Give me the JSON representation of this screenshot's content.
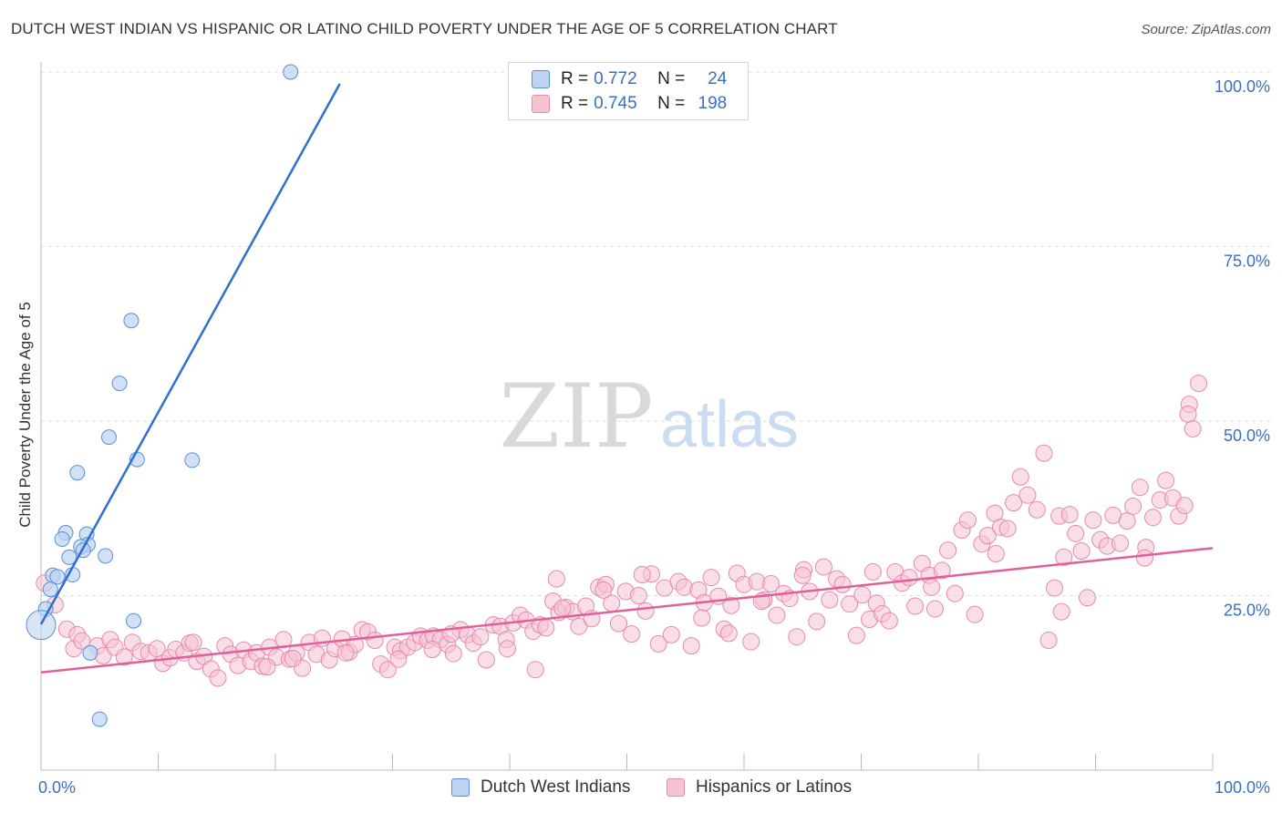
{
  "title": "DUTCH WEST INDIAN VS HISPANIC OR LATINO CHILD POVERTY UNDER THE AGE OF 5 CORRELATION CHART",
  "source": "Source: ZipAtlas.com",
  "watermark": {
    "zip": "ZIP",
    "atlas": "atlas"
  },
  "legend": {
    "r_label": "R =",
    "n_label": "N =",
    "rows": [
      {
        "r": "0.772",
        "n": "24"
      },
      {
        "r": "0.745",
        "n": "198"
      }
    ]
  },
  "colors": {
    "blue_fill": "#bcd3f2",
    "blue_stroke": "#5b8fd6",
    "blue_line": "#2e6fd0",
    "pink_fill": "#f6c3d3",
    "pink_stroke": "#e68aa9",
    "pink_line": "#e0609a",
    "tick_text": "#3a6fc4",
    "grid": "#dddddd"
  },
  "chart_data": {
    "type": "scatter",
    "title": "DUTCH WEST INDIAN VS HISPANIC OR LATINO CHILD POVERTY UNDER THE AGE OF 5 CORRELATION CHART",
    "xlabel": "",
    "ylabel": "Child Poverty Under the Age of 5",
    "xlim": [
      0,
      100
    ],
    "ylim": [
      0,
      100
    ],
    "x_tick_labels": [
      "0.0%",
      "100.0%"
    ],
    "y_ticks": [
      25,
      50,
      75,
      100
    ],
    "y_tick_labels": [
      "25.0%",
      "50.0%",
      "75.0%",
      "100.0%"
    ],
    "grid": true,
    "series": [
      {
        "name": "Dutch West Indians",
        "color": "#5b8fd6",
        "points": [
          [
            21.3,
            100.0
          ],
          [
            7.7,
            64.4
          ],
          [
            6.7,
            55.4
          ],
          [
            5.8,
            47.7
          ],
          [
            8.2,
            44.5
          ],
          [
            12.9,
            44.4
          ],
          [
            3.1,
            42.6
          ],
          [
            2.1,
            34.0
          ],
          [
            3.9,
            33.8
          ],
          [
            1.8,
            33.1
          ],
          [
            4.0,
            32.3
          ],
          [
            3.4,
            32.0
          ],
          [
            3.6,
            31.5
          ],
          [
            2.4,
            30.5
          ],
          [
            5.5,
            30.7
          ],
          [
            2.7,
            28.0
          ],
          [
            1.0,
            27.9
          ],
          [
            1.4,
            27.7
          ],
          [
            0.8,
            25.9
          ],
          [
            0.4,
            23.1
          ],
          [
            7.9,
            21.4
          ],
          [
            0.0,
            20.8
          ],
          [
            4.2,
            16.8
          ],
          [
            5.0,
            7.3
          ]
        ],
        "trend": {
          "x": [
            0,
            25.5
          ],
          "y": [
            20.9,
            98.3
          ]
        },
        "R": 0.772,
        "N": 24
      },
      {
        "name": "Hispanics or Latinos",
        "color": "#e68aa9",
        "points": [
          [
            0.3,
            26.8
          ],
          [
            1.2,
            23.7
          ],
          [
            2.2,
            20.2
          ],
          [
            3.1,
            19.4
          ],
          [
            2.8,
            17.4
          ],
          [
            3.5,
            18.5
          ],
          [
            4.8,
            17.8
          ],
          [
            5.3,
            16.4
          ],
          [
            5.9,
            18.7
          ],
          [
            6.3,
            17.6
          ],
          [
            7.1,
            16.2
          ],
          [
            7.8,
            18.3
          ],
          [
            8.5,
            17.0
          ],
          [
            9.2,
            16.8
          ],
          [
            9.9,
            17.4
          ],
          [
            10.4,
            15.3
          ],
          [
            11.0,
            16.1
          ],
          [
            11.5,
            17.3
          ],
          [
            12.2,
            16.8
          ],
          [
            12.7,
            18.2
          ],
          [
            13.3,
            15.6
          ],
          [
            13.9,
            16.3
          ],
          [
            14.5,
            14.5
          ],
          [
            15.1,
            13.2
          ],
          [
            15.7,
            17.8
          ],
          [
            16.2,
            16.6
          ],
          [
            16.8,
            15.0
          ],
          [
            17.3,
            17.2
          ],
          [
            17.9,
            15.6
          ],
          [
            18.4,
            16.8
          ],
          [
            18.9,
            14.9
          ],
          [
            19.5,
            17.6
          ],
          [
            20.1,
            16.2
          ],
          [
            20.7,
            18.7
          ],
          [
            21.2,
            15.9
          ],
          [
            21.8,
            16.8
          ],
          [
            22.3,
            14.6
          ],
          [
            22.9,
            18.3
          ],
          [
            23.5,
            16.6
          ],
          [
            24.0,
            18.9
          ],
          [
            24.6,
            15.8
          ],
          [
            25.1,
            17.4
          ],
          [
            25.7,
            18.8
          ],
          [
            26.3,
            16.9
          ],
          [
            26.8,
            18.0
          ],
          [
            27.4,
            20.1
          ],
          [
            27.9,
            19.8
          ],
          [
            28.5,
            18.6
          ],
          [
            29.0,
            15.2
          ],
          [
            29.6,
            14.4
          ],
          [
            30.2,
            17.6
          ],
          [
            30.7,
            17.1
          ],
          [
            31.3,
            17.6
          ],
          [
            31.9,
            18.3
          ],
          [
            32.4,
            19.2
          ],
          [
            33.0,
            18.6
          ],
          [
            33.5,
            19.2
          ],
          [
            34.1,
            18.7
          ],
          [
            34.7,
            18.0
          ],
          [
            35.2,
            16.7
          ],
          [
            35.8,
            20.1
          ],
          [
            36.4,
            19.4
          ],
          [
            36.9,
            18.2
          ],
          [
            37.5,
            19.1
          ],
          [
            38.0,
            15.8
          ],
          [
            38.6,
            20.8
          ],
          [
            39.2,
            20.6
          ],
          [
            39.7,
            18.7
          ],
          [
            40.3,
            21.1
          ],
          [
            40.9,
            22.2
          ],
          [
            41.4,
            21.5
          ],
          [
            42.0,
            19.9
          ],
          [
            42.6,
            20.8
          ],
          [
            43.1,
            20.4
          ],
          [
            43.7,
            24.2
          ],
          [
            44.2,
            22.6
          ],
          [
            44.8,
            23.3
          ],
          [
            45.4,
            22.7
          ],
          [
            45.9,
            20.6
          ],
          [
            46.5,
            23.5
          ],
          [
            47.0,
            21.7
          ],
          [
            47.6,
            26.2
          ],
          [
            48.2,
            26.6
          ],
          [
            48.7,
            23.9
          ],
          [
            49.3,
            21.0
          ],
          [
            49.9,
            25.6
          ],
          [
            50.4,
            19.5
          ],
          [
            51.0,
            25.0
          ],
          [
            51.6,
            22.8
          ],
          [
            52.1,
            28.1
          ],
          [
            52.7,
            18.1
          ],
          [
            53.2,
            26.1
          ],
          [
            53.8,
            19.4
          ],
          [
            54.4,
            27.0
          ],
          [
            54.9,
            26.2
          ],
          [
            55.5,
            17.8
          ],
          [
            56.1,
            25.8
          ],
          [
            56.6,
            24.0
          ],
          [
            57.2,
            27.6
          ],
          [
            57.8,
            24.9
          ],
          [
            58.3,
            20.2
          ],
          [
            58.9,
            23.6
          ],
          [
            59.4,
            28.2
          ],
          [
            60.0,
            26.6
          ],
          [
            60.6,
            18.4
          ],
          [
            61.1,
            27.0
          ],
          [
            61.7,
            24.4
          ],
          [
            62.3,
            26.7
          ],
          [
            62.8,
            22.2
          ],
          [
            63.4,
            25.3
          ],
          [
            63.9,
            24.6
          ],
          [
            64.5,
            19.1
          ],
          [
            65.1,
            28.7
          ],
          [
            65.6,
            25.6
          ],
          [
            66.2,
            21.3
          ],
          [
            66.8,
            29.1
          ],
          [
            67.3,
            24.4
          ],
          [
            67.9,
            27.4
          ],
          [
            68.4,
            26.6
          ],
          [
            69.0,
            23.8
          ],
          [
            69.6,
            19.3
          ],
          [
            70.1,
            25.1
          ],
          [
            70.7,
            21.6
          ],
          [
            71.3,
            23.9
          ],
          [
            71.8,
            22.4
          ],
          [
            72.4,
            21.4
          ],
          [
            72.9,
            28.4
          ],
          [
            73.5,
            26.8
          ],
          [
            74.1,
            27.6
          ],
          [
            74.6,
            23.5
          ],
          [
            75.2,
            29.6
          ],
          [
            75.8,
            27.9
          ],
          [
            76.3,
            23.1
          ],
          [
            76.9,
            28.6
          ],
          [
            77.4,
            31.5
          ],
          [
            78.0,
            25.3
          ],
          [
            78.6,
            34.4
          ],
          [
            79.1,
            35.8
          ],
          [
            79.7,
            22.3
          ],
          [
            80.3,
            32.4
          ],
          [
            80.8,
            33.6
          ],
          [
            81.4,
            36.8
          ],
          [
            81.9,
            34.8
          ],
          [
            82.5,
            34.6
          ],
          [
            83.0,
            38.3
          ],
          [
            83.6,
            42.0
          ],
          [
            84.2,
            39.4
          ],
          [
            85.0,
            37.3
          ],
          [
            85.6,
            45.4
          ],
          [
            86.0,
            18.6
          ],
          [
            86.5,
            26.1
          ],
          [
            86.9,
            36.4
          ],
          [
            87.3,
            30.5
          ],
          [
            87.8,
            36.6
          ],
          [
            88.3,
            33.9
          ],
          [
            88.8,
            31.4
          ],
          [
            89.3,
            24.7
          ],
          [
            89.8,
            35.8
          ],
          [
            90.4,
            33.0
          ],
          [
            91.0,
            32.1
          ],
          [
            91.5,
            36.5
          ],
          [
            92.1,
            32.5
          ],
          [
            92.7,
            35.7
          ],
          [
            93.2,
            37.8
          ],
          [
            93.8,
            40.5
          ],
          [
            94.3,
            31.9
          ],
          [
            94.9,
            36.2
          ],
          [
            95.5,
            38.7
          ],
          [
            96.0,
            41.5
          ],
          [
            96.6,
            39.0
          ],
          [
            97.1,
            36.4
          ],
          [
            97.6,
            37.9
          ],
          [
            98.0,
            52.4
          ],
          [
            98.3,
            48.9
          ],
          [
            98.8,
            55.4
          ],
          [
            97.9,
            51.0
          ],
          [
            35.0,
            19.5
          ],
          [
            33.4,
            17.3
          ],
          [
            21.5,
            16.0
          ],
          [
            56.4,
            21.8
          ],
          [
            44.5,
            23.2
          ],
          [
            30.5,
            15.9
          ],
          [
            39.8,
            17.4
          ],
          [
            71.0,
            28.4
          ],
          [
            26.0,
            16.8
          ],
          [
            19.3,
            14.8
          ],
          [
            42.2,
            14.4
          ],
          [
            61.5,
            24.2
          ],
          [
            81.5,
            31.0
          ],
          [
            13.0,
            18.3
          ],
          [
            65.0,
            27.9
          ],
          [
            51.3,
            28.0
          ],
          [
            44.0,
            27.4
          ],
          [
            87.1,
            22.7
          ],
          [
            76.0,
            26.2
          ],
          [
            94.2,
            30.4
          ],
          [
            48.0,
            25.8
          ],
          [
            58.7,
            19.6
          ]
        ],
        "trend": {
          "x": [
            0,
            100
          ],
          "y": [
            14.0,
            31.8
          ]
        },
        "R": 0.745,
        "N": 198
      }
    ]
  }
}
